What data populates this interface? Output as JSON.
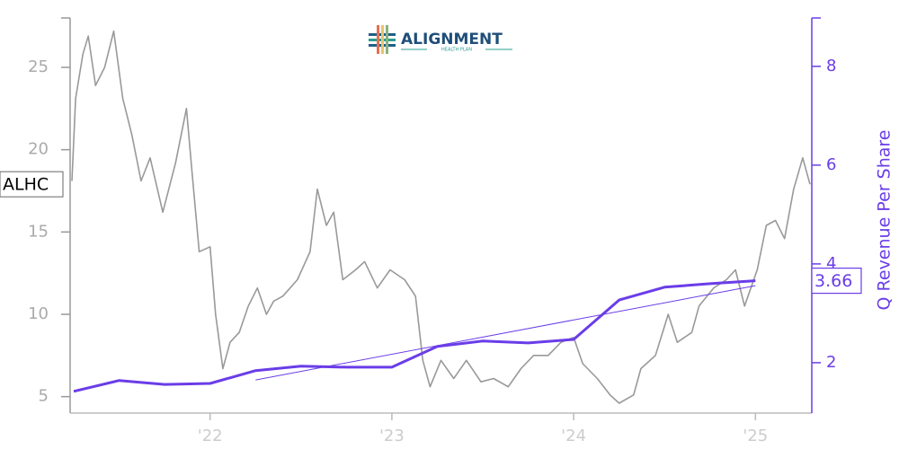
{
  "chart_data": {
    "type": "line",
    "logo": {
      "name": "ALIGNMENT",
      "tagline": "HEALTH PLAN"
    },
    "xlim": [
      2021.23,
      2025.31
    ],
    "xticks": [
      {
        "value": 2022,
        "label": "'22"
      },
      {
        "value": 2023,
        "label": "'23"
      },
      {
        "value": 2024,
        "label": "'24"
      },
      {
        "value": 2025,
        "label": "'25"
      }
    ],
    "ylim": [
      4,
      28
    ],
    "yticks": [
      5,
      10,
      15,
      20,
      25
    ],
    "y2lim": [
      0.98,
      8.98
    ],
    "y2ticks": [
      2,
      4,
      6,
      8
    ],
    "series": [
      {
        "name": "ALHC",
        "color": "#999999",
        "line_width": 1.6,
        "axis": "y",
        "x": [
          2021.24,
          2021.26,
          2021.3,
          2021.33,
          2021.37,
          2021.42,
          2021.47,
          2021.52,
          2021.57,
          2021.62,
          2021.67,
          2021.74,
          2021.81,
          2021.87,
          2021.9,
          2021.94,
          2022.0,
          2022.03,
          2022.07,
          2022.11,
          2022.16,
          2022.21,
          2022.26,
          2022.31,
          2022.35,
          2022.4,
          2022.48,
          2022.55,
          2022.59,
          2022.64,
          2022.68,
          2022.73,
          2022.8,
          2022.85,
          2022.92,
          2022.99,
          2023.07,
          2023.13,
          2023.17,
          2023.21,
          2023.27,
          2023.34,
          2023.41,
          2023.49,
          2023.56,
          2023.64,
          2023.71,
          2023.78,
          2023.86,
          2023.93,
          2024.0,
          2024.05,
          2024.13,
          2024.2,
          2024.25,
          2024.33,
          2024.37,
          2024.45,
          2024.52,
          2024.57,
          2024.65,
          2024.69,
          2024.77,
          2024.84,
          2024.89,
          2024.94,
          2025.01,
          2025.06,
          2025.11,
          2025.16,
          2025.21,
          2025.26,
          2025.3
        ],
        "values": [
          18.1,
          23.1,
          25.8,
          26.9,
          23.9,
          25.0,
          27.2,
          23.1,
          20.9,
          18.1,
          19.5,
          16.2,
          19.2,
          22.5,
          18.7,
          13.8,
          14.1,
          10.0,
          6.7,
          8.3,
          8.9,
          10.5,
          11.6,
          10.0,
          10.8,
          11.1,
          12.1,
          13.8,
          17.6,
          15.4,
          16.2,
          12.1,
          12.7,
          13.2,
          11.6,
          12.7,
          12.1,
          11.1,
          7.2,
          5.6,
          7.2,
          6.1,
          7.2,
          5.9,
          6.1,
          5.6,
          6.7,
          7.5,
          7.5,
          8.3,
          8.6,
          7.0,
          6.1,
          5.1,
          4.6,
          5.1,
          6.7,
          7.5,
          10.0,
          8.3,
          8.9,
          10.5,
          11.6,
          12.1,
          12.7,
          10.5,
          12.7,
          15.4,
          15.7,
          14.6,
          17.6,
          19.5,
          17.9
        ]
      },
      {
        "name": "Q Revenue Per Share",
        "color": "#6a3de8",
        "line_width": 3,
        "axis": "y2",
        "x": [
          2021.25,
          2021.5,
          2021.75,
          2022.0,
          2022.25,
          2022.5,
          2022.75,
          2023.0,
          2023.25,
          2023.5,
          2023.75,
          2024.0,
          2024.25,
          2024.5,
          2024.75,
          2025.0
        ],
        "values": [
          1.42,
          1.64,
          1.56,
          1.58,
          1.84,
          1.93,
          1.91,
          1.91,
          2.33,
          2.44,
          2.4,
          2.47,
          3.27,
          3.53,
          3.6,
          3.66
        ]
      },
      {
        "color": "#6a3de8",
        "line_width": 1,
        "axis": "y2",
        "x": [
          2022.25,
          2025.0
        ],
        "values": [
          1.65,
          3.56
        ]
      }
    ]
  }
}
